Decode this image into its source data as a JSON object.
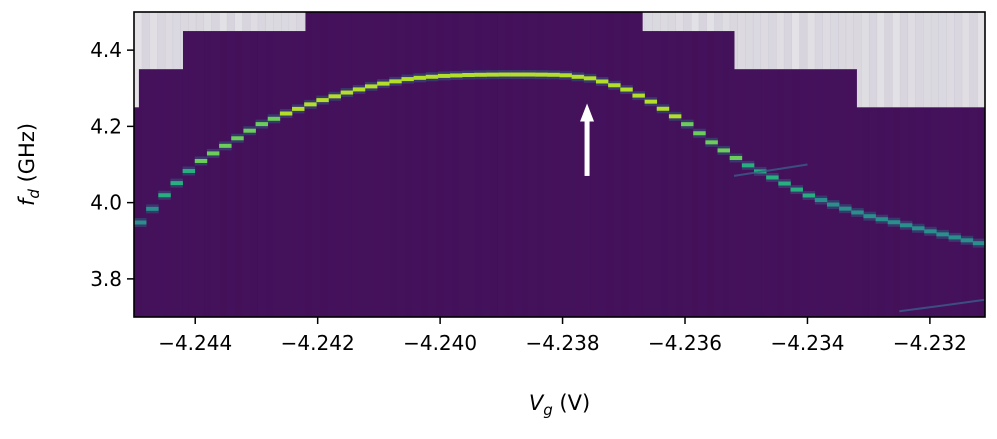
{
  "chart_data": {
    "type": "heatmap",
    "xlabel_main": "V",
    "xlabel_sub": "g",
    "xlabel_unit": " (V)",
    "ylabel_main": "f",
    "ylabel_sub": "d",
    "ylabel_unit": " (GHz)",
    "xlim": [
      -4.245,
      -4.2311
    ],
    "ylim": [
      3.7,
      4.5
    ],
    "x_ticks": [
      -4.244,
      -4.242,
      -4.24,
      -4.238,
      -4.236,
      -4.234,
      -4.232
    ],
    "x_tick_labels": [
      "−4.244",
      "−4.242",
      "−4.240",
      "−4.238",
      "−4.236",
      "−4.234",
      "−4.232"
    ],
    "y_ticks": [
      3.8,
      4.0,
      4.2,
      4.4
    ],
    "y_tick_labels": [
      "3.8",
      "4.0",
      "4.2",
      "4.4"
    ],
    "colormap": "viridis",
    "background_color": "#440f58",
    "missing_color": "#ececec",
    "scan_top_edges": [
      {
        "x0": -4.245,
        "x1": -4.24492,
        "fmax": 4.25
      },
      {
        "x0": -4.24492,
        "x1": -4.2442,
        "fmax": 4.35
      },
      {
        "x0": -4.2442,
        "x1": -4.2422,
        "fmax": 4.45
      },
      {
        "x0": -4.2422,
        "x1": -4.2367,
        "fmax": 4.5
      },
      {
        "x0": -4.2367,
        "x1": -4.2352,
        "fmax": 4.45
      },
      {
        "x0": -4.2352,
        "x1": -4.2332,
        "fmax": 4.35
      },
      {
        "x0": -4.2332,
        "x1": -4.2311,
        "fmax": 4.25
      }
    ],
    "resonance": {
      "x": [
        -4.245,
        -4.2445,
        -4.244,
        -4.2435,
        -4.243,
        -4.2425,
        -4.242,
        -4.2415,
        -4.241,
        -4.2405,
        -4.24,
        -4.2395,
        -4.239,
        -4.2385,
        -4.238,
        -4.2375,
        -4.237,
        -4.2365,
        -4.236,
        -4.2355,
        -4.235,
        -4.2345,
        -4.234,
        -4.2335,
        -4.233,
        -4.2325,
        -4.232,
        -4.2315,
        -4.2311
      ],
      "f": [
        3.93,
        4.02,
        4.1,
        4.15,
        4.2,
        4.235,
        4.265,
        4.29,
        4.31,
        4.325,
        4.332,
        4.335,
        4.336,
        4.336,
        4.335,
        4.325,
        4.3,
        4.26,
        4.21,
        4.15,
        4.1,
        4.06,
        4.02,
        3.99,
        3.965,
        3.945,
        3.925,
        3.905,
        3.89
      ]
    },
    "faint_lines": [
      {
        "x": [
          -4.2352,
          -4.2346,
          -4.234
        ],
        "f": [
          4.07,
          4.085,
          4.1
        ]
      },
      {
        "x": [
          -4.2325,
          -4.2318,
          -4.2311
        ],
        "f": [
          3.715,
          3.73,
          3.745
        ]
      }
    ],
    "annotation": {
      "type": "arrow",
      "color": "#ffffff",
      "x": -4.2376,
      "f_tail": 4.07,
      "f_head": 4.26
    }
  }
}
